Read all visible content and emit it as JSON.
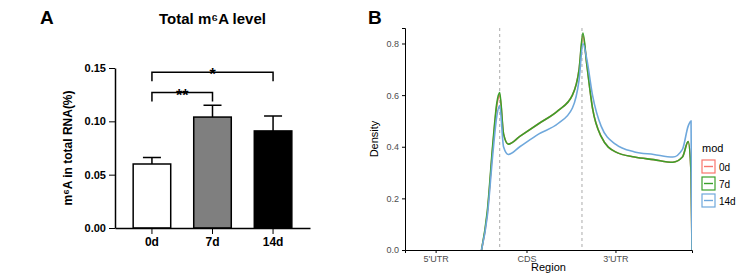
{
  "chart_data": [
    {
      "type": "bar",
      "panel": "A",
      "title": "Total m⁶A level",
      "y_label": "m⁶A in total RNA(%)",
      "categories": [
        "0d",
        "7d",
        "14d"
      ],
      "values": [
        0.06,
        0.104,
        0.091
      ],
      "errors": [
        0.006,
        0.011,
        0.014
      ],
      "colors": [
        "#ffffff",
        "#7f7f7f",
        "#000000"
      ],
      "ylim": [
        0,
        0.15
      ],
      "yticks": [
        {
          "value": 0,
          "label": "0.00"
        },
        {
          "value": 0.05,
          "label": "0.05"
        },
        {
          "value": 0.1,
          "label": "0.10"
        },
        {
          "value": 0.15,
          "label": "0.15"
        }
      ],
      "annotations": [
        {
          "from": 0,
          "to": 1,
          "y": 0.127,
          "label": "**"
        },
        {
          "from": 0,
          "to": 2,
          "y": 0.146,
          "label": "*"
        }
      ]
    },
    {
      "type": "line",
      "panel": "B",
      "x_label": "Region",
      "y_label": "Density",
      "legend": "right",
      "legend_title": "mod",
      "x": [
        0.8,
        0.86,
        0.92,
        0.96,
        0.99,
        1.03,
        1.08,
        1.2,
        1.4,
        1.6,
        1.75,
        1.82,
        1.86,
        1.9,
        1.96,
        2.05,
        2.2,
        2.4,
        2.6,
        2.8,
        2.9,
        2.96,
        2.99,
        3.0
      ],
      "series": [
        {
          "name": "0d",
          "color": "#f8766d",
          "values": [
            0,
            0.14,
            0.41,
            0.56,
            0.6,
            0.45,
            0.41,
            0.44,
            0.49,
            0.54,
            0.6,
            0.7,
            0.83,
            0.72,
            0.55,
            0.44,
            0.38,
            0.36,
            0.35,
            0.34,
            0.36,
            0.42,
            0.3,
            0
          ]
        },
        {
          "name": "7d",
          "color": "#3aa02a",
          "values": [
            0,
            0.15,
            0.42,
            0.57,
            0.61,
            0.45,
            0.41,
            0.44,
            0.49,
            0.54,
            0.6,
            0.7,
            0.84,
            0.72,
            0.55,
            0.44,
            0.38,
            0.36,
            0.35,
            0.34,
            0.36,
            0.42,
            0.3,
            0
          ]
        },
        {
          "name": "14d",
          "color": "#6fa8dc",
          "values": [
            0,
            0.13,
            0.38,
            0.52,
            0.56,
            0.4,
            0.37,
            0.4,
            0.45,
            0.49,
            0.55,
            0.66,
            0.8,
            0.74,
            0.6,
            0.48,
            0.41,
            0.38,
            0.37,
            0.36,
            0.39,
            0.48,
            0.5,
            0
          ]
        }
      ],
      "vlines": [
        0.99,
        1.85
      ],
      "xlim": [
        0,
        3
      ],
      "xticks": [
        {
          "value": 0.32,
          "label": "5'UTR"
        },
        {
          "value": 1.27,
          "label": "CDS"
        },
        {
          "value": 2.2,
          "label": "3'UTR"
        }
      ],
      "ylim": [
        0,
        0.86
      ],
      "yticks": [
        {
          "value": 0,
          "label": "0.0"
        },
        {
          "value": 0.2,
          "label": "0.2"
        },
        {
          "value": 0.4,
          "label": "0.4"
        },
        {
          "value": 0.6,
          "label": "0.6"
        },
        {
          "value": 0.8,
          "label": "0.8"
        }
      ]
    }
  ]
}
